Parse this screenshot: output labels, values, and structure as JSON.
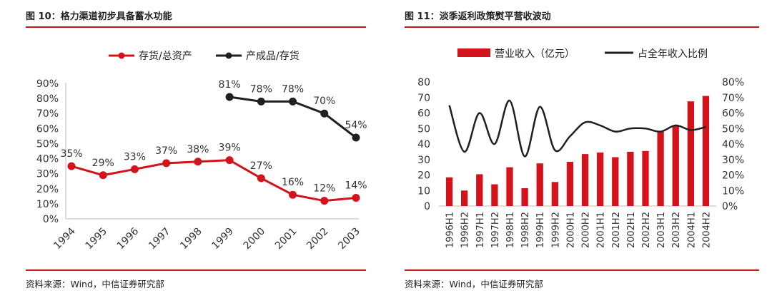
{
  "left": {
    "title": "图 10：格力渠道初步具备蓄水功能",
    "source": "资料来源：Wind，中信证券研究部",
    "chart_data": {
      "type": "line",
      "title": "",
      "categories": [
        "1994",
        "1995",
        "1996",
        "1997",
        "1998",
        "1999",
        "2000",
        "2001",
        "2002",
        "2003"
      ],
      "series": [
        {
          "name": "存货/总资产",
          "color": "#d4121b",
          "values": [
            35,
            29,
            33,
            37,
            38,
            39,
            27,
            16,
            12,
            14
          ],
          "labels": [
            "35%",
            "29%",
            "33%",
            "37%",
            "38%",
            "39%",
            "27%",
            "16%",
            "12%",
            "14%"
          ]
        },
        {
          "name": "产成品/存货",
          "color": "#231f20",
          "values": [
            null,
            null,
            null,
            null,
            null,
            81,
            78,
            78,
            70,
            54
          ],
          "labels": [
            "",
            "",
            "",
            "",
            "",
            "81%",
            "78%",
            "78%",
            "70%",
            "54%"
          ]
        }
      ],
      "y_ticks": [
        "0%",
        "10%",
        "20%",
        "30%",
        "40%",
        "50%",
        "60%",
        "70%",
        "80%",
        "90%"
      ],
      "ylim": [
        0,
        90
      ],
      "xlabel": "",
      "ylabel": ""
    }
  },
  "right": {
    "title": "图 11：淡季返利政策熨平营收波动",
    "source": "资料来源：Wind，中信证券研究部",
    "chart_data": {
      "type": "bar",
      "title": "",
      "categories": [
        "1996H1",
        "1996H2",
        "1997H1",
        "1997H2",
        "1998H1",
        "1998H2",
        "1999H1",
        "1999H2",
        "2000H1",
        "2000H2",
        "2001H1",
        "2001H2",
        "2002H1",
        "2002H2",
        "2003H1",
        "2003H2",
        "2004H1",
        "2004H2"
      ],
      "series": [
        {
          "name": "营业收入（亿元）",
          "type": "bar",
          "axis": "left",
          "color": "#d4121b",
          "values": [
            18.5,
            10,
            20.5,
            14,
            25,
            11.5,
            27.5,
            15.5,
            28.5,
            33.5,
            34.5,
            31.5,
            35,
            35.5,
            48,
            52,
            67.5,
            71
          ]
        },
        {
          "name": "占全年收入比例",
          "type": "line",
          "axis": "right",
          "color": "#231f20",
          "values": [
            65,
            35,
            60,
            40,
            68,
            32,
            64,
            36,
            45,
            54,
            52,
            48,
            50,
            50,
            48,
            52,
            49,
            51
          ]
        }
      ],
      "y_left_ticks": [
        "0",
        "10",
        "20",
        "30",
        "40",
        "50",
        "60",
        "70",
        "80"
      ],
      "y_right_ticks": [
        "0%",
        "10%",
        "20%",
        "30%",
        "40%",
        "50%",
        "60%",
        "70%",
        "80%"
      ],
      "ylim_left": [
        0,
        80
      ],
      "ylim_right": [
        0,
        80
      ]
    }
  }
}
